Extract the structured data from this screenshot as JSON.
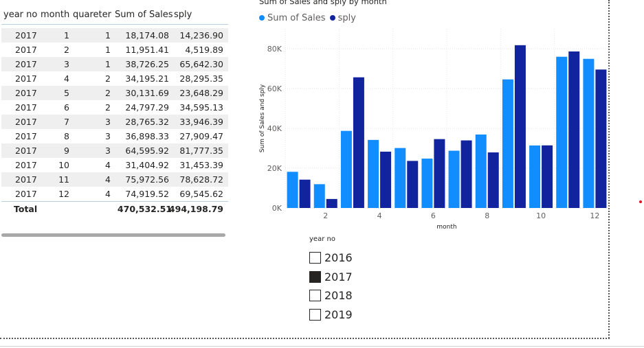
{
  "table": {
    "columns": [
      "year no",
      "month",
      "quareter",
      "Sum of Sales",
      "sply"
    ],
    "rows": [
      [
        "2017",
        "1",
        "1",
        "18,174.08",
        "14,236.90"
      ],
      [
        "2017",
        "2",
        "1",
        "11,951.41",
        "4,519.89"
      ],
      [
        "2017",
        "3",
        "1",
        "38,726.25",
        "65,642.30"
      ],
      [
        "2017",
        "4",
        "2",
        "34,195.21",
        "28,295.35"
      ],
      [
        "2017",
        "5",
        "2",
        "30,131.69",
        "23,648.29"
      ],
      [
        "2017",
        "6",
        "2",
        "24,797.29",
        "34,595.13"
      ],
      [
        "2017",
        "7",
        "3",
        "28,765.32",
        "33,946.39"
      ],
      [
        "2017",
        "8",
        "3",
        "36,898.33",
        "27,909.47"
      ],
      [
        "2017",
        "9",
        "3",
        "64,595.92",
        "81,777.35"
      ],
      [
        "2017",
        "10",
        "4",
        "31,404.92",
        "31,453.39"
      ],
      [
        "2017",
        "11",
        "4",
        "75,972.56",
        "78,628.72"
      ],
      [
        "2017",
        "12",
        "4",
        "74,919.52",
        "69,545.62"
      ]
    ],
    "total": {
      "label": "Total",
      "sales": "470,532.51",
      "sply": "494,198.79"
    }
  },
  "chart": {
    "title": "Sum of Sales and sply by month",
    "legend": [
      {
        "name": "Sum of Sales",
        "color": "#118dff"
      },
      {
        "name": "sply",
        "color": "#12239e"
      }
    ]
  },
  "chart_data": {
    "type": "bar",
    "title": "Sum of Sales and sply by month",
    "xlabel": "month",
    "ylabel": "Sum of Sales and sply",
    "categories": [
      1,
      2,
      3,
      4,
      5,
      6,
      7,
      8,
      9,
      10,
      11,
      12
    ],
    "x_ticks": [
      "2",
      "4",
      "6",
      "8",
      "10",
      "12"
    ],
    "y_ticks": [
      "0K",
      "20K",
      "40K",
      "60K",
      "80K"
    ],
    "ylim": [
      0,
      90000
    ],
    "grid": true,
    "legend_position": "top-left",
    "series": [
      {
        "name": "Sum of Sales",
        "color": "#118dff",
        "values": [
          18174.08,
          11951.41,
          38726.25,
          34195.21,
          30131.69,
          24797.29,
          28765.32,
          36898.33,
          64595.92,
          31404.92,
          75972.56,
          74919.52
        ]
      },
      {
        "name": "sply",
        "color": "#12239e",
        "values": [
          14236.9,
          4519.89,
          65642.3,
          28295.35,
          23648.29,
          34595.13,
          33946.39,
          27909.47,
          81777.35,
          31453.39,
          78628.72,
          69545.62
        ]
      }
    ]
  },
  "slicer": {
    "title": "year no",
    "options": [
      {
        "label": "2016",
        "checked": false
      },
      {
        "label": "2017",
        "checked": true
      },
      {
        "label": "2018",
        "checked": false
      },
      {
        "label": "2019",
        "checked": false
      }
    ]
  }
}
